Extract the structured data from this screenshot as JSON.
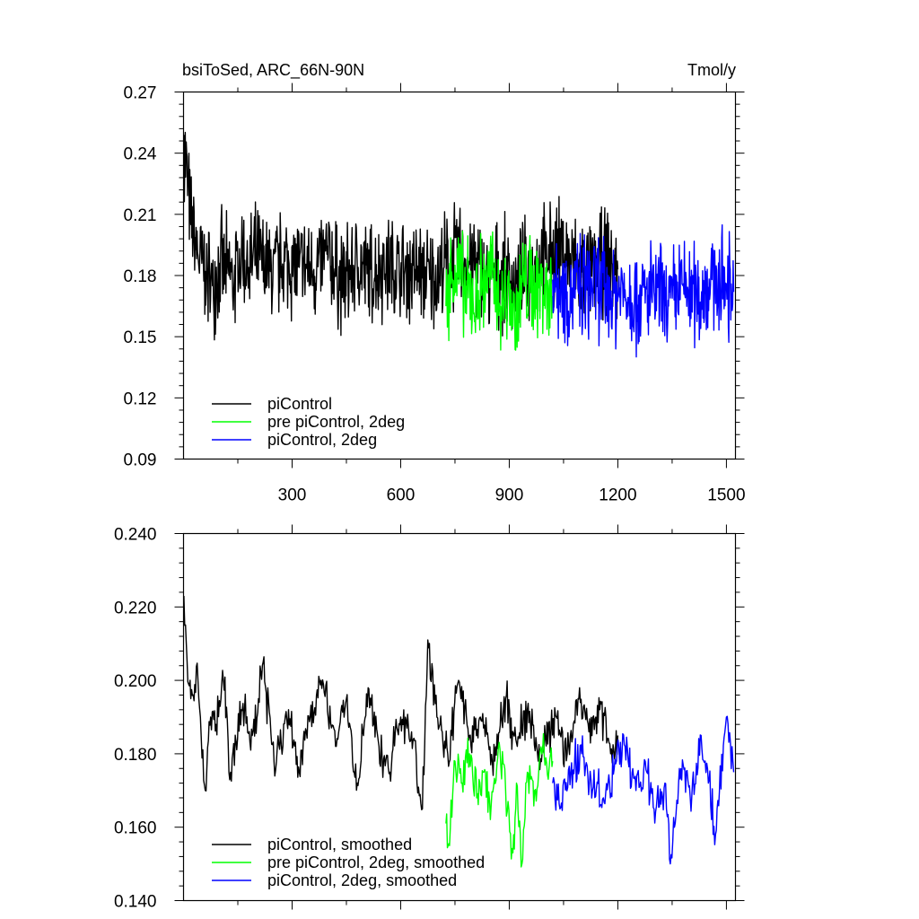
{
  "chart_data": [
    {
      "type": "line",
      "title": "bsiToSed, ARC_66N-90N",
      "units": "Tmol/y",
      "xlim": [
        0,
        1525
      ],
      "ylim": [
        0.09,
        0.27
      ],
      "xticks": [
        300,
        600,
        900,
        1200,
        1500
      ],
      "yticks": [
        0.09,
        0.12,
        0.15,
        0.18,
        0.21,
        0.24,
        0.27
      ],
      "ytick_labels": [
        "0.09",
        "0.12",
        "0.15",
        "0.18",
        "0.21",
        "0.24",
        "0.27"
      ],
      "legend_position": "bottom-left",
      "series": [
        {
          "name": "piControl",
          "color": "#000000",
          "x": [
            1,
            20,
            40,
            60,
            80,
            100,
            120,
            140,
            160,
            180,
            200,
            240,
            280,
            320,
            360,
            400,
            440,
            480,
            520,
            560,
            600,
            640,
            680,
            720,
            760,
            800,
            840,
            880,
            920,
            960,
            1000,
            1040,
            1080,
            1120,
            1160,
            1200
          ],
          "y": [
            0.249,
            0.205,
            0.19,
            0.182,
            0.175,
            0.186,
            0.181,
            0.178,
            0.19,
            0.184,
            0.188,
            0.182,
            0.187,
            0.184,
            0.183,
            0.189,
            0.176,
            0.185,
            0.18,
            0.186,
            0.181,
            0.183,
            0.178,
            0.184,
            0.19,
            0.186,
            0.178,
            0.181,
            0.176,
            0.183,
            0.188,
            0.192,
            0.185,
            0.179,
            0.187,
            0.183
          ]
        },
        {
          "name": "pre piControl, 2deg",
          "color": "#00ff00",
          "x": [
            725,
            750,
            775,
            800,
            825,
            850,
            875,
            900,
            915,
            940,
            965,
            990,
            1020
          ],
          "y": [
            0.165,
            0.185,
            0.172,
            0.168,
            0.176,
            0.18,
            0.165,
            0.17,
            0.158,
            0.178,
            0.172,
            0.176,
            0.17
          ]
        },
        {
          "name": "piControl, 2deg",
          "color": "#0000ff",
          "x": [
            1020,
            1060,
            1100,
            1140,
            1180,
            1220,
            1260,
            1300,
            1340,
            1380,
            1420,
            1460,
            1500,
            1520
          ],
          "y": [
            0.178,
            0.172,
            0.174,
            0.176,
            0.17,
            0.173,
            0.168,
            0.172,
            0.165,
            0.175,
            0.17,
            0.178,
            0.176,
            0.172
          ]
        }
      ]
    },
    {
      "type": "line",
      "title": "",
      "xlim": [
        0,
        1525
      ],
      "ylim": [
        0.14,
        0.24
      ],
      "xticks": [
        300,
        600,
        900,
        1200,
        1500
      ],
      "yticks": [
        0.14,
        0.16,
        0.18,
        0.2,
        0.22,
        0.24
      ],
      "ytick_labels": [
        "0.140",
        "0.160",
        "0.180",
        "0.200",
        "0.220",
        "0.240"
      ],
      "legend_position": "bottom-left",
      "series": [
        {
          "name": "piControl, smoothed",
          "color": "#000000",
          "x": [
            1,
            10,
            20,
            40,
            60,
            75,
            90,
            110,
            130,
            160,
            190,
            220,
            250,
            290,
            320,
            350,
            380,
            420,
            450,
            480,
            510,
            540,
            570,
            600,
            630,
            660,
            675,
            700,
            730,
            760,
            790,
            820,
            860,
            890,
            920,
            950,
            980,
            1000,
            1030,
            1060,
            1090,
            1120,
            1150,
            1180,
            1200
          ],
          "y": [
            0.223,
            0.205,
            0.195,
            0.2,
            0.17,
            0.19,
            0.188,
            0.2,
            0.175,
            0.192,
            0.185,
            0.205,
            0.178,
            0.192,
            0.175,
            0.19,
            0.2,
            0.182,
            0.195,
            0.172,
            0.198,
            0.182,
            0.175,
            0.19,
            0.186,
            0.165,
            0.211,
            0.19,
            0.18,
            0.2,
            0.185,
            0.19,
            0.178,
            0.195,
            0.183,
            0.192,
            0.178,
            0.184,
            0.19,
            0.18,
            0.195,
            0.186,
            0.192,
            0.18,
            0.185
          ]
        },
        {
          "name": "pre piControl, 2deg, smoothed",
          "color": "#00ff00",
          "x": [
            725,
            735,
            750,
            770,
            790,
            810,
            830,
            850,
            870,
            890,
            910,
            920,
            935,
            950,
            970,
            990,
            1010,
            1020
          ],
          "y": [
            0.161,
            0.155,
            0.178,
            0.172,
            0.18,
            0.168,
            0.175,
            0.166,
            0.182,
            0.17,
            0.153,
            0.172,
            0.15,
            0.175,
            0.17,
            0.18,
            0.176,
            0.178
          ]
        },
        {
          "name": "piControl, 2deg, smoothed",
          "color": "#0000ff",
          "x": [
            1020,
            1040,
            1070,
            1100,
            1130,
            1160,
            1190,
            1220,
            1250,
            1280,
            1300,
            1330,
            1345,
            1370,
            1400,
            1430,
            1450,
            1470,
            1500,
            1520
          ],
          "y": [
            0.172,
            0.165,
            0.175,
            0.18,
            0.17,
            0.168,
            0.176,
            0.182,
            0.17,
            0.175,
            0.165,
            0.172,
            0.15,
            0.176,
            0.168,
            0.185,
            0.172,
            0.158,
            0.19,
            0.175
          ]
        }
      ]
    }
  ]
}
